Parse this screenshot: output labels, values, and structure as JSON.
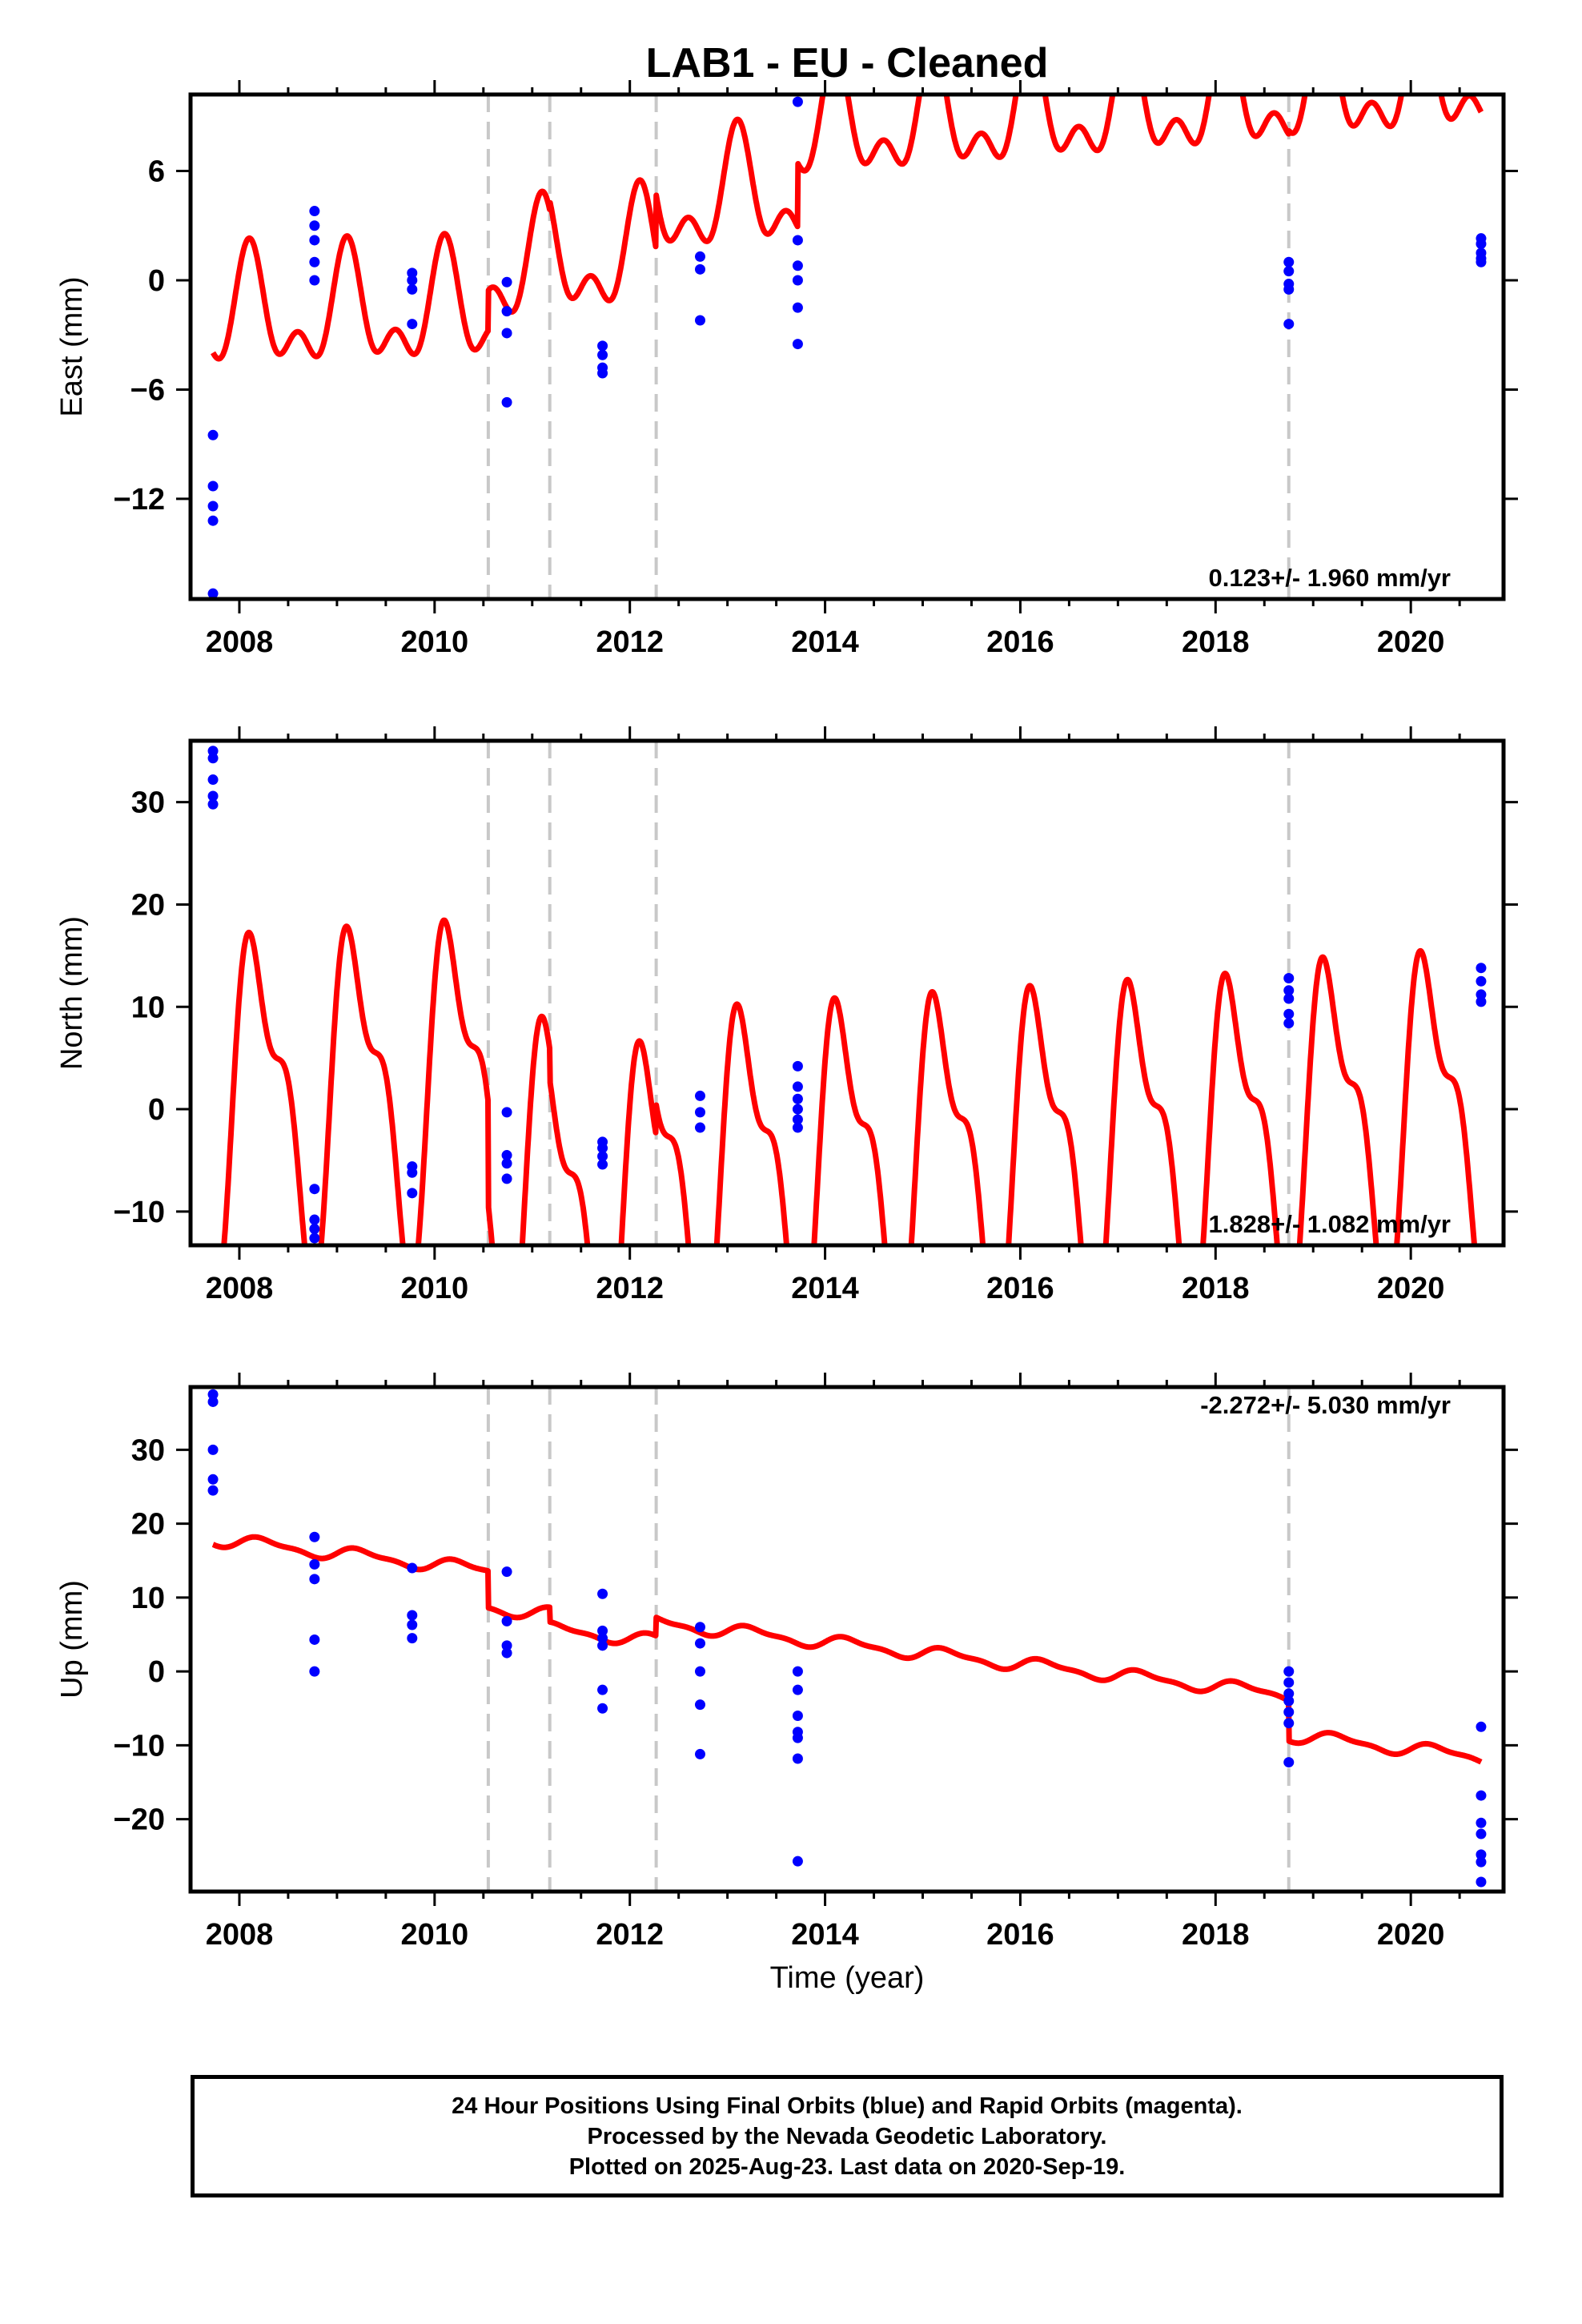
{
  "title": "LAB1  - EU - Cleaned",
  "xlabel": "Time (year)",
  "caption": [
    "24 Hour Positions Using Final Orbits (blue) and Rapid Orbits (magenta).",
    "Processed by the Nevada Geodetic Laboratory.",
    "Plotted on 2025-Aug-23. Last data on 2020-Sep-19."
  ],
  "colors": {
    "data": "#0000ff",
    "model": "#ff0000",
    "steps": "#c8c8c8",
    "axis": "#000000"
  },
  "chart_data": [
    {
      "type": "scatter",
      "ylabel": "East (mm)",
      "rate_text": "0.123+/- 1.960 mm/yr",
      "xlim": [
        2007.5,
        2020.95
      ],
      "ylim": [
        -17.5,
        10.2
      ],
      "xticks": [
        2008,
        2010,
        2012,
        2014,
        2016,
        2018,
        2020
      ],
      "yticks": [
        -12,
        -6,
        0,
        6
      ],
      "ytick_labels": [
        "−12",
        "−6",
        "0",
        "6"
      ],
      "step_epochs": [
        2010.55,
        2011.18,
        2012.27,
        2018.75
      ],
      "points": [
        [
          2007.73,
          -8.5
        ],
        [
          2007.73,
          -11.3
        ],
        [
          2007.73,
          -12.4
        ],
        [
          2007.73,
          -13.2
        ],
        [
          2007.73,
          -17.2
        ],
        [
          2008.77,
          3.8
        ],
        [
          2008.77,
          3.0
        ],
        [
          2008.77,
          2.2
        ],
        [
          2008.77,
          1.0
        ],
        [
          2008.77,
          0.0
        ],
        [
          2009.77,
          0.4
        ],
        [
          2009.77,
          0.0
        ],
        [
          2009.77,
          -0.5
        ],
        [
          2009.77,
          -2.4
        ],
        [
          2010.74,
          -0.1
        ],
        [
          2010.74,
          -1.7
        ],
        [
          2010.74,
          -2.9
        ],
        [
          2010.74,
          -6.7
        ],
        [
          2011.72,
          -3.6
        ],
        [
          2011.72,
          -4.1
        ],
        [
          2011.72,
          -4.8
        ],
        [
          2011.72,
          -5.1
        ],
        [
          2012.72,
          1.3
        ],
        [
          2012.72,
          0.6
        ],
        [
          2012.72,
          -2.2
        ],
        [
          2013.72,
          9.8
        ],
        [
          2013.72,
          2.2
        ],
        [
          2013.72,
          0.8
        ],
        [
          2013.72,
          0.0
        ],
        [
          2013.72,
          -1.5
        ],
        [
          2013.72,
          -3.5
        ],
        [
          2018.75,
          1.0
        ],
        [
          2018.75,
          0.5
        ],
        [
          2018.75,
          -0.2
        ],
        [
          2018.75,
          -0.5
        ],
        [
          2018.75,
          -2.4
        ],
        [
          2020.72,
          2.3
        ],
        [
          2020.72,
          2.0
        ],
        [
          2020.72,
          1.5
        ],
        [
          2020.72,
          1.2
        ],
        [
          2020.72,
          1.0
        ]
      ],
      "model": {
        "intercept": -2.0,
        "rate": 0.123,
        "t0": 2008.0,
        "annual_amp": 2.6,
        "annual_phase": 0.9,
        "semiannual_amp": 1.7,
        "semiannual_phase": 0.3,
        "offsets": [
          {
            "t": 2010.55,
            "dy": 2.2
          },
          {
            "t": 2011.18,
            "dy": 0.5
          },
          {
            "t": 2012.27,
            "dy": 3.0
          },
          {
            "t": 2018.75,
            "dy": 0.2
          }
        ],
        "trend_breaks": [
          {
            "t": 2012.27,
            "drate": 0.25
          },
          {
            "t": 2013.72,
            "dy": 3.5
          }
        ]
      }
    },
    {
      "type": "scatter",
      "ylabel": "North (mm)",
      "rate_text": "1.828+/- 1.082 mm/yr",
      "xlim": [
        2007.5,
        2020.95
      ],
      "ylim": [
        -13.3,
        36.0
      ],
      "xticks": [
        2008,
        2010,
        2012,
        2014,
        2016,
        2018,
        2020
      ],
      "yticks": [
        -10,
        0,
        10,
        20,
        30
      ],
      "ytick_labels": [
        "−10",
        "0",
        "10",
        "20",
        "30"
      ],
      "step_epochs": [
        2010.55,
        2011.18,
        2012.27,
        2018.75
      ],
      "points": [
        [
          2007.73,
          35.0
        ],
        [
          2007.73,
          34.3
        ],
        [
          2007.73,
          32.2
        ],
        [
          2007.73,
          30.6
        ],
        [
          2007.73,
          29.8
        ],
        [
          2008.77,
          -7.8
        ],
        [
          2008.77,
          -10.8
        ],
        [
          2008.77,
          -11.7
        ],
        [
          2008.77,
          -12.6
        ],
        [
          2009.77,
          -5.6
        ],
        [
          2009.77,
          -6.2
        ],
        [
          2009.77,
          -8.2
        ],
        [
          2010.74,
          -0.3
        ],
        [
          2010.74,
          -4.5
        ],
        [
          2010.74,
          -5.3
        ],
        [
          2010.74,
          -6.8
        ],
        [
          2011.72,
          -3.2
        ],
        [
          2011.72,
          -3.8
        ],
        [
          2011.72,
          -4.6
        ],
        [
          2011.72,
          -5.4
        ],
        [
          2012.72,
          1.3
        ],
        [
          2012.72,
          -0.3
        ],
        [
          2012.72,
          -1.8
        ],
        [
          2013.72,
          4.2
        ],
        [
          2013.72,
          2.2
        ],
        [
          2013.72,
          1.0
        ],
        [
          2013.72,
          0.0
        ],
        [
          2013.72,
          -1.0
        ],
        [
          2013.72,
          -1.8
        ],
        [
          2018.75,
          12.8
        ],
        [
          2018.75,
          11.6
        ],
        [
          2018.75,
          10.8
        ],
        [
          2018.75,
          9.3
        ],
        [
          2018.75,
          8.4
        ],
        [
          2020.72,
          13.8
        ],
        [
          2020.72,
          12.5
        ],
        [
          2020.72,
          11.2
        ],
        [
          2020.72,
          10.5
        ]
      ],
      "model": {
        "intercept": 1.0,
        "rate": 0.6,
        "t0": 2008.0,
        "annual_amp": 14.5,
        "annual_phase": 0.3,
        "semiannual_amp": 6.5,
        "semiannual_phase": 1.1,
        "offsets": [
          {
            "t": 2010.55,
            "dy": -10.0
          },
          {
            "t": 2011.18,
            "dy": -3.0
          },
          {
            "t": 2012.27,
            "dy": 3.0
          },
          {
            "t": 2018.75,
            "dy": 1.0
          }
        ],
        "trend_breaks": []
      }
    },
    {
      "type": "scatter",
      "ylabel": "Up (mm)",
      "rate_text": "-2.272+/- 5.030 mm/yr",
      "xlim": [
        2007.5,
        2020.95
      ],
      "ylim": [
        -29.8,
        38.5
      ],
      "xticks": [
        2008,
        2010,
        2012,
        2014,
        2016,
        2018,
        2020
      ],
      "yticks": [
        -20,
        -10,
        0,
        10,
        20,
        30
      ],
      "ytick_labels": [
        "−20",
        "−10",
        "0",
        "10",
        "20",
        "30"
      ],
      "step_epochs": [
        2010.55,
        2011.18,
        2012.27,
        2018.75
      ],
      "points": [
        [
          2007.73,
          37.5
        ],
        [
          2007.73,
          36.5
        ],
        [
          2007.73,
          30.0
        ],
        [
          2007.73,
          26.0
        ],
        [
          2007.73,
          24.5
        ],
        [
          2008.77,
          18.2
        ],
        [
          2008.77,
          14.5
        ],
        [
          2008.77,
          12.5
        ],
        [
          2008.77,
          4.3
        ],
        [
          2008.77,
          0.0
        ],
        [
          2009.77,
          14.0
        ],
        [
          2009.77,
          7.6
        ],
        [
          2009.77,
          6.3
        ],
        [
          2009.77,
          4.5
        ],
        [
          2010.74,
          13.5
        ],
        [
          2010.74,
          6.8
        ],
        [
          2010.74,
          3.5
        ],
        [
          2010.74,
          2.5
        ],
        [
          2011.72,
          10.5
        ],
        [
          2011.72,
          5.5
        ],
        [
          2011.72,
          4.5
        ],
        [
          2011.72,
          3.5
        ],
        [
          2011.72,
          -2.5
        ],
        [
          2011.72,
          -5.0
        ],
        [
          2012.72,
          6.0
        ],
        [
          2012.72,
          3.8
        ],
        [
          2012.72,
          0.0
        ],
        [
          2012.72,
          -4.5
        ],
        [
          2012.72,
          -11.2
        ],
        [
          2013.72,
          0.0
        ],
        [
          2013.72,
          -2.5
        ],
        [
          2013.72,
          -6.0
        ],
        [
          2013.72,
          -8.2
        ],
        [
          2013.72,
          -9.0
        ],
        [
          2013.72,
          -11.8
        ],
        [
          2013.72,
          -25.7
        ],
        [
          2018.75,
          0.0
        ],
        [
          2018.75,
          -1.5
        ],
        [
          2018.75,
          -3.0
        ],
        [
          2018.75,
          -4.0
        ],
        [
          2018.75,
          -5.5
        ],
        [
          2018.75,
          -7.0
        ],
        [
          2018.75,
          -12.3
        ],
        [
          2020.72,
          -7.5
        ],
        [
          2020.72,
          -16.8
        ],
        [
          2020.72,
          -20.5
        ],
        [
          2020.72,
          -22.0
        ],
        [
          2020.72,
          -24.8
        ],
        [
          2020.72,
          -25.8
        ],
        [
          2020.72,
          -28.5
        ]
      ],
      "model": {
        "intercept": 17.5,
        "rate": -1.5,
        "t0": 2008.0,
        "annual_amp": 0.8,
        "annual_phase": 0.0,
        "semiannual_amp": 0.3,
        "semiannual_phase": 0.0,
        "offsets": [
          {
            "t": 2010.55,
            "dy": -5.0
          },
          {
            "t": 2011.18,
            "dy": -2.0
          },
          {
            "t": 2012.27,
            "dy": 2.5
          },
          {
            "t": 2018.75,
            "dy": -5.5
          }
        ],
        "trend_breaks": []
      }
    }
  ]
}
